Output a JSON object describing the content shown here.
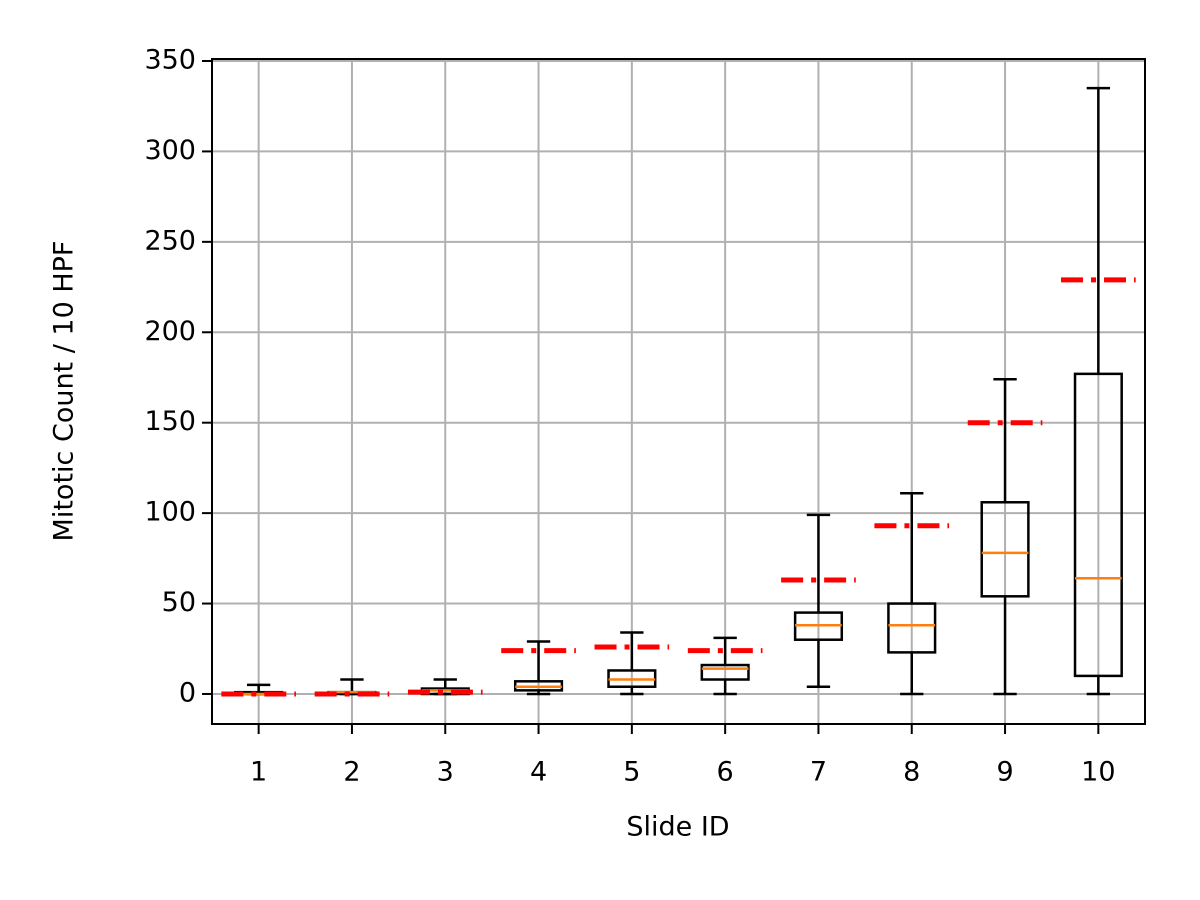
{
  "chart_data": {
    "type": "box",
    "xlabel": "Slide ID",
    "ylabel": "Mitotic Count / 10 HPF",
    "categories": [
      "1",
      "2",
      "3",
      "4",
      "5",
      "6",
      "7",
      "8",
      "9",
      "10"
    ],
    "whisker_low": [
      0,
      0,
      0,
      0,
      0,
      0,
      4,
      0,
      0,
      0
    ],
    "q1": [
      0,
      0,
      0,
      2,
      4,
      8,
      30,
      23,
      54,
      10
    ],
    "median": [
      0,
      1,
      2,
      4,
      8,
      14,
      38,
      38,
      78,
      64
    ],
    "q3": [
      1,
      1,
      3,
      7,
      13,
      16,
      45,
      50,
      106,
      177
    ],
    "whisker_high": [
      5,
      8,
      8,
      29,
      34,
      31,
      99,
      111,
      174,
      335
    ],
    "reference_values": [
      0,
      0,
      1,
      24,
      26,
      24,
      63,
      93,
      150,
      229
    ],
    "box_color": "#000000",
    "median_color": "#ff7f0e",
    "reference_color": "#ff0000",
    "ylim": [
      -16.6,
      351.1
    ],
    "yticks": [
      0,
      50,
      100,
      150,
      200,
      250,
      300,
      350
    ],
    "grid": true
  }
}
